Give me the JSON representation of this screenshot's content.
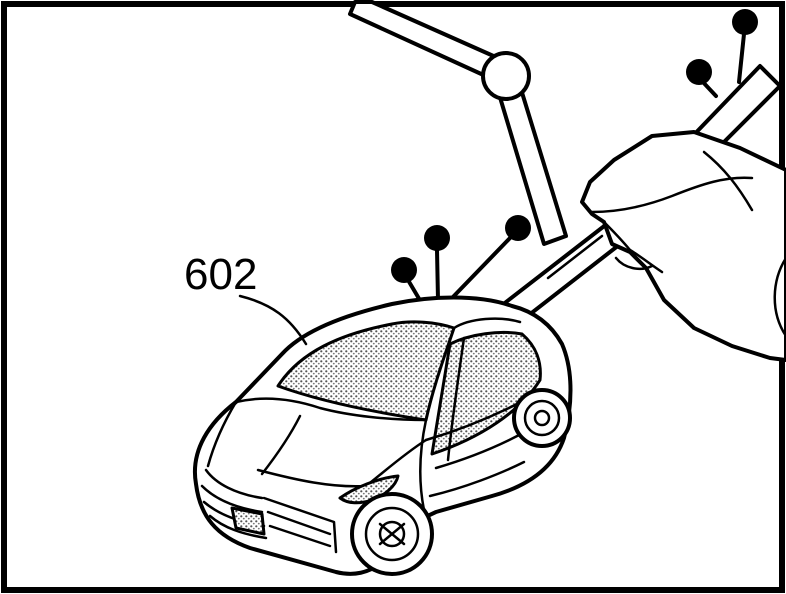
{
  "figure": {
    "reference_label": "602"
  }
}
